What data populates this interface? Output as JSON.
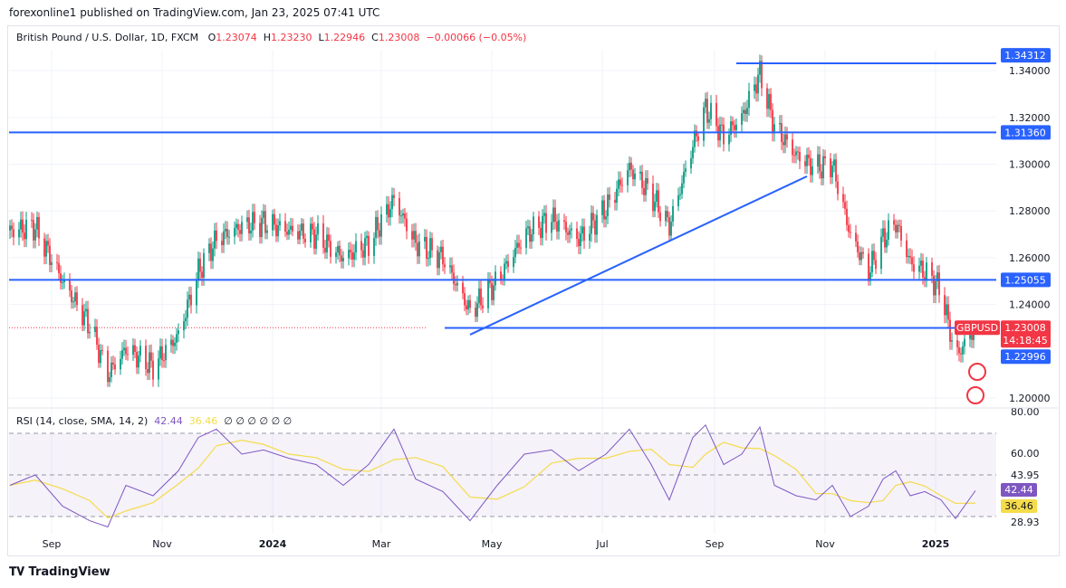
{
  "publisher_line": "forexonline1 published on TradingView.com, Jan 23, 2025 07:41 UTC",
  "legend": {
    "symbol": "British Pound / U.S. Dollar, 1D, FXCM",
    "o_label": "O",
    "o": "1.23074",
    "h_label": "H",
    "h": "1.23230",
    "l_label": "L",
    "l": "1.22946",
    "c_label": "C",
    "c": "1.23008",
    "change": "−0.00066 (−0.05%)"
  },
  "rsi_legend": {
    "title": "RSI (14, close, SMA, 14, 2)",
    "rsi": "42.44",
    "sma": "36.46",
    "empty": "∅ ∅ ∅ ∅ ∅ ∅"
  },
  "price_axis": {
    "ticks": [
      "1.20000",
      "1.24000",
      "1.26000",
      "1.28000",
      "1.30000",
      "1.32000",
      "1.34000"
    ],
    "tick_values": [
      1.2,
      1.24,
      1.26,
      1.28,
      1.3,
      1.32,
      1.34
    ]
  },
  "rsi_axis": {
    "ticks": [
      "80.00",
      "60.00",
      "43.95",
      "28.93"
    ]
  },
  "time_axis": {
    "ticks": [
      "Sep",
      "Nov",
      "2024",
      "Mar",
      "May",
      "Jul",
      "Sep",
      "Nov",
      "2025"
    ],
    "tick_dates": [
      "2023-09-01",
      "2023-11-01",
      "2024-01-01",
      "2024-03-01",
      "2024-05-01",
      "2024-07-01",
      "2024-09-01",
      "2024-11-01",
      "2025-01-01"
    ]
  },
  "levels": [
    {
      "label": "1.34312",
      "value": 1.34312,
      "from": "2024-09-13"
    },
    {
      "label": "1.31360",
      "value": 1.3136,
      "from": null
    },
    {
      "label": "1.25055",
      "value": 1.25055,
      "from": null
    },
    {
      "label": "1.22996",
      "value": 1.22996,
      "from": "2024-04-05"
    }
  ],
  "current": {
    "symbol": "GBPUSD",
    "price": "1.23008",
    "countdown": "14:18:45",
    "value": 1.23008
  },
  "rsi_badges": {
    "rsi": "42.44",
    "sma": "36.46"
  },
  "colors": {
    "up": "#089981",
    "down": "#f23645",
    "level": "#2962ff",
    "rsi": "#7e57c2",
    "sma": "#f5dc4a"
  },
  "logo": "TradingView",
  "chart_data": {
    "type": "candlestick",
    "symbol": "GBPUSD",
    "interval": "1D",
    "trendline": {
      "from": {
        "date": "2024-04-19",
        "value": 1.2271
      },
      "to": {
        "date": "2024-10-22",
        "value": 1.2948
      }
    },
    "ylim": [
      1.195,
      1.35
    ],
    "approx_closes": [
      [
        "2023-08-09",
        1.2716
      ],
      [
        "2023-08-23",
        1.273
      ],
      [
        "2023-09-07",
        1.25
      ],
      [
        "2023-09-22",
        1.231
      ],
      [
        "2023-10-02",
        1.21
      ],
      [
        "2023-10-12",
        1.221
      ],
      [
        "2023-10-27",
        1.2135
      ],
      [
        "2023-11-10",
        1.227
      ],
      [
        "2023-11-21",
        1.254
      ],
      [
        "2023-12-01",
        1.268
      ],
      [
        "2023-12-15",
        1.2735
      ],
      [
        "2023-12-27",
        1.275
      ],
      [
        "2024-01-10",
        1.2716
      ],
      [
        "2024-01-25",
        1.2696
      ],
      [
        "2024-02-09",
        1.26
      ],
      [
        "2024-02-23",
        1.266
      ],
      [
        "2024-03-08",
        1.285
      ],
      [
        "2024-03-20",
        1.266
      ],
      [
        "2024-04-04",
        1.26
      ],
      [
        "2024-04-19",
        1.237
      ],
      [
        "2024-05-04",
        1.25
      ],
      [
        "2024-05-19",
        1.2696
      ],
      [
        "2024-06-03",
        1.277
      ],
      [
        "2024-06-18",
        1.268
      ],
      [
        "2024-07-03",
        1.281
      ],
      [
        "2024-07-16",
        1.2985
      ],
      [
        "2024-07-28",
        1.287
      ],
      [
        "2024-08-07",
        1.2735
      ],
      [
        "2024-08-20",
        1.308
      ],
      [
        "2024-08-27",
        1.3238
      ],
      [
        "2024-09-06",
        1.312
      ],
      [
        "2024-09-16",
        1.32
      ],
      [
        "2024-09-26",
        1.339
      ],
      [
        "2024-10-04",
        1.316
      ],
      [
        "2024-10-16",
        1.304
      ],
      [
        "2024-10-27",
        1.2985
      ],
      [
        "2024-11-05",
        1.3
      ],
      [
        "2024-11-15",
        1.2696
      ],
      [
        "2024-11-25",
        1.254
      ],
      [
        "2024-12-03",
        1.268
      ],
      [
        "2024-12-10",
        1.275
      ],
      [
        "2024-12-18",
        1.258
      ],
      [
        "2024-12-26",
        1.254
      ],
      [
        "2025-01-04",
        1.2465
      ],
      [
        "2025-01-12",
        1.2174
      ],
      [
        "2025-01-23",
        1.23008
      ]
    ],
    "rsi": [
      [
        "2023-08-09",
        45
      ],
      [
        "2023-08-23",
        50
      ],
      [
        "2023-09-07",
        35
      ],
      [
        "2023-09-22",
        28
      ],
      [
        "2023-10-02",
        25
      ],
      [
        "2023-10-12",
        45
      ],
      [
        "2023-10-27",
        40
      ],
      [
        "2023-11-10",
        52
      ],
      [
        "2023-11-21",
        68
      ],
      [
        "2023-12-01",
        72
      ],
      [
        "2023-12-15",
        60
      ],
      [
        "2023-12-27",
        62
      ],
      [
        "2024-01-10",
        58
      ],
      [
        "2024-01-25",
        55
      ],
      [
        "2024-02-09",
        45
      ],
      [
        "2024-02-23",
        55
      ],
      [
        "2024-03-08",
        72
      ],
      [
        "2024-03-20",
        48
      ],
      [
        "2024-04-04",
        42
      ],
      [
        "2024-04-19",
        28
      ],
      [
        "2024-05-04",
        45
      ],
      [
        "2024-05-19",
        60
      ],
      [
        "2024-06-03",
        62
      ],
      [
        "2024-06-18",
        52
      ],
      [
        "2024-07-03",
        60
      ],
      [
        "2024-07-16",
        72
      ],
      [
        "2024-07-28",
        55
      ],
      [
        "2024-08-07",
        38
      ],
      [
        "2024-08-20",
        68
      ],
      [
        "2024-08-27",
        74
      ],
      [
        "2024-09-06",
        55
      ],
      [
        "2024-09-16",
        60
      ],
      [
        "2024-09-26",
        73
      ],
      [
        "2024-10-04",
        45
      ],
      [
        "2024-10-16",
        40
      ],
      [
        "2024-10-27",
        38
      ],
      [
        "2024-11-05",
        45
      ],
      [
        "2024-11-15",
        30
      ],
      [
        "2024-11-25",
        35
      ],
      [
        "2024-12-03",
        48
      ],
      [
        "2024-12-10",
        52
      ],
      [
        "2024-12-18",
        40
      ],
      [
        "2024-12-26",
        42
      ],
      [
        "2025-01-04",
        38
      ],
      [
        "2025-01-12",
        29
      ],
      [
        "2025-01-23",
        42.44
      ]
    ],
    "rsi_bands": [
      70,
      50,
      30
    ]
  }
}
